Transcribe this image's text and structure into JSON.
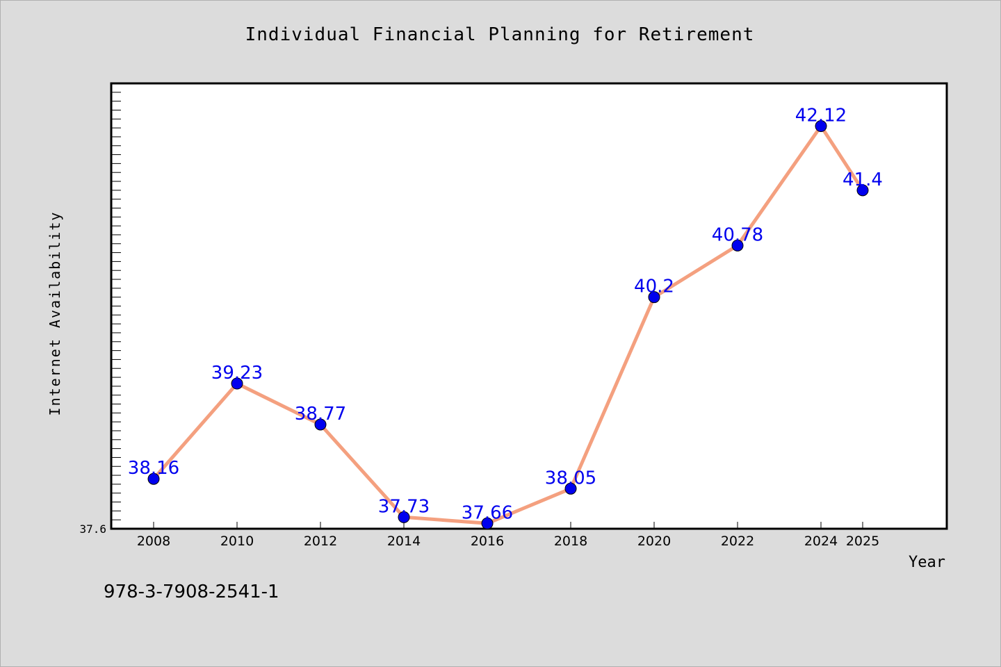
{
  "chart_data": {
    "type": "line",
    "title": "Individual Financial Planning for Retirement",
    "xlabel": "Year",
    "ylabel": "Internet Availability",
    "x": [
      "2008",
      "2010",
      "2012",
      "2014",
      "2016",
      "2018",
      "2020",
      "2022",
      "2024",
      "2025"
    ],
    "series": [
      {
        "values": [
          38.16,
          39.23,
          38.77,
          37.73,
          37.66,
          38.05,
          40.2,
          40.78,
          42.12,
          41.4
        ],
        "data_labels": [
          "38.16",
          "39.23",
          "38.77",
          "37.73",
          "37.66",
          "38.05",
          "40.2",
          "40.78",
          "42.12",
          "41.4"
        ]
      }
    ],
    "ylim": [
      37.6,
      42.6
    ],
    "y_min_label": "37.6",
    "grid": false,
    "legend": "none",
    "line_color": "#f4a07f",
    "marker_color": "#0000ee",
    "label_color": "#0000ee"
  },
  "footer": {
    "isbn": "978-3-7908-2541-1"
  }
}
